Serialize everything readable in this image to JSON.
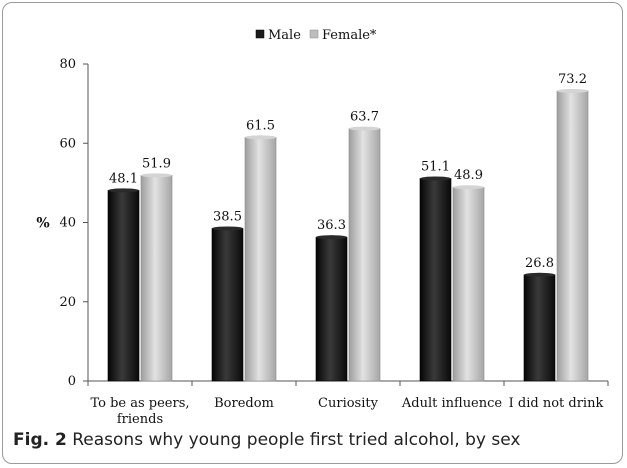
{
  "chart_data": {
    "type": "bar",
    "title": "",
    "xlabel": "",
    "ylabel": "%",
    "ylim": [
      0,
      80
    ],
    "yticks": [
      0,
      20,
      40,
      60,
      80
    ],
    "grid": false,
    "legend_position": "top-center",
    "categories": [
      [
        "To be as peers,",
        "friends"
      ],
      [
        "Boredom"
      ],
      [
        "Curiosity"
      ],
      [
        "Adult influence"
      ],
      [
        "I did not drink"
      ]
    ],
    "series": [
      {
        "name": "Male",
        "color": "#1c1c1c",
        "values": [
          48.1,
          38.5,
          36.3,
          51.1,
          26.8
        ]
      },
      {
        "name": "Female*",
        "color": "#bdbdbd",
        "values": [
          51.9,
          61.5,
          63.7,
          48.9,
          73.2
        ]
      }
    ]
  },
  "caption": {
    "number": "Fig. 2",
    "text": "Reasons why young people first tried alcohol, by sex"
  }
}
